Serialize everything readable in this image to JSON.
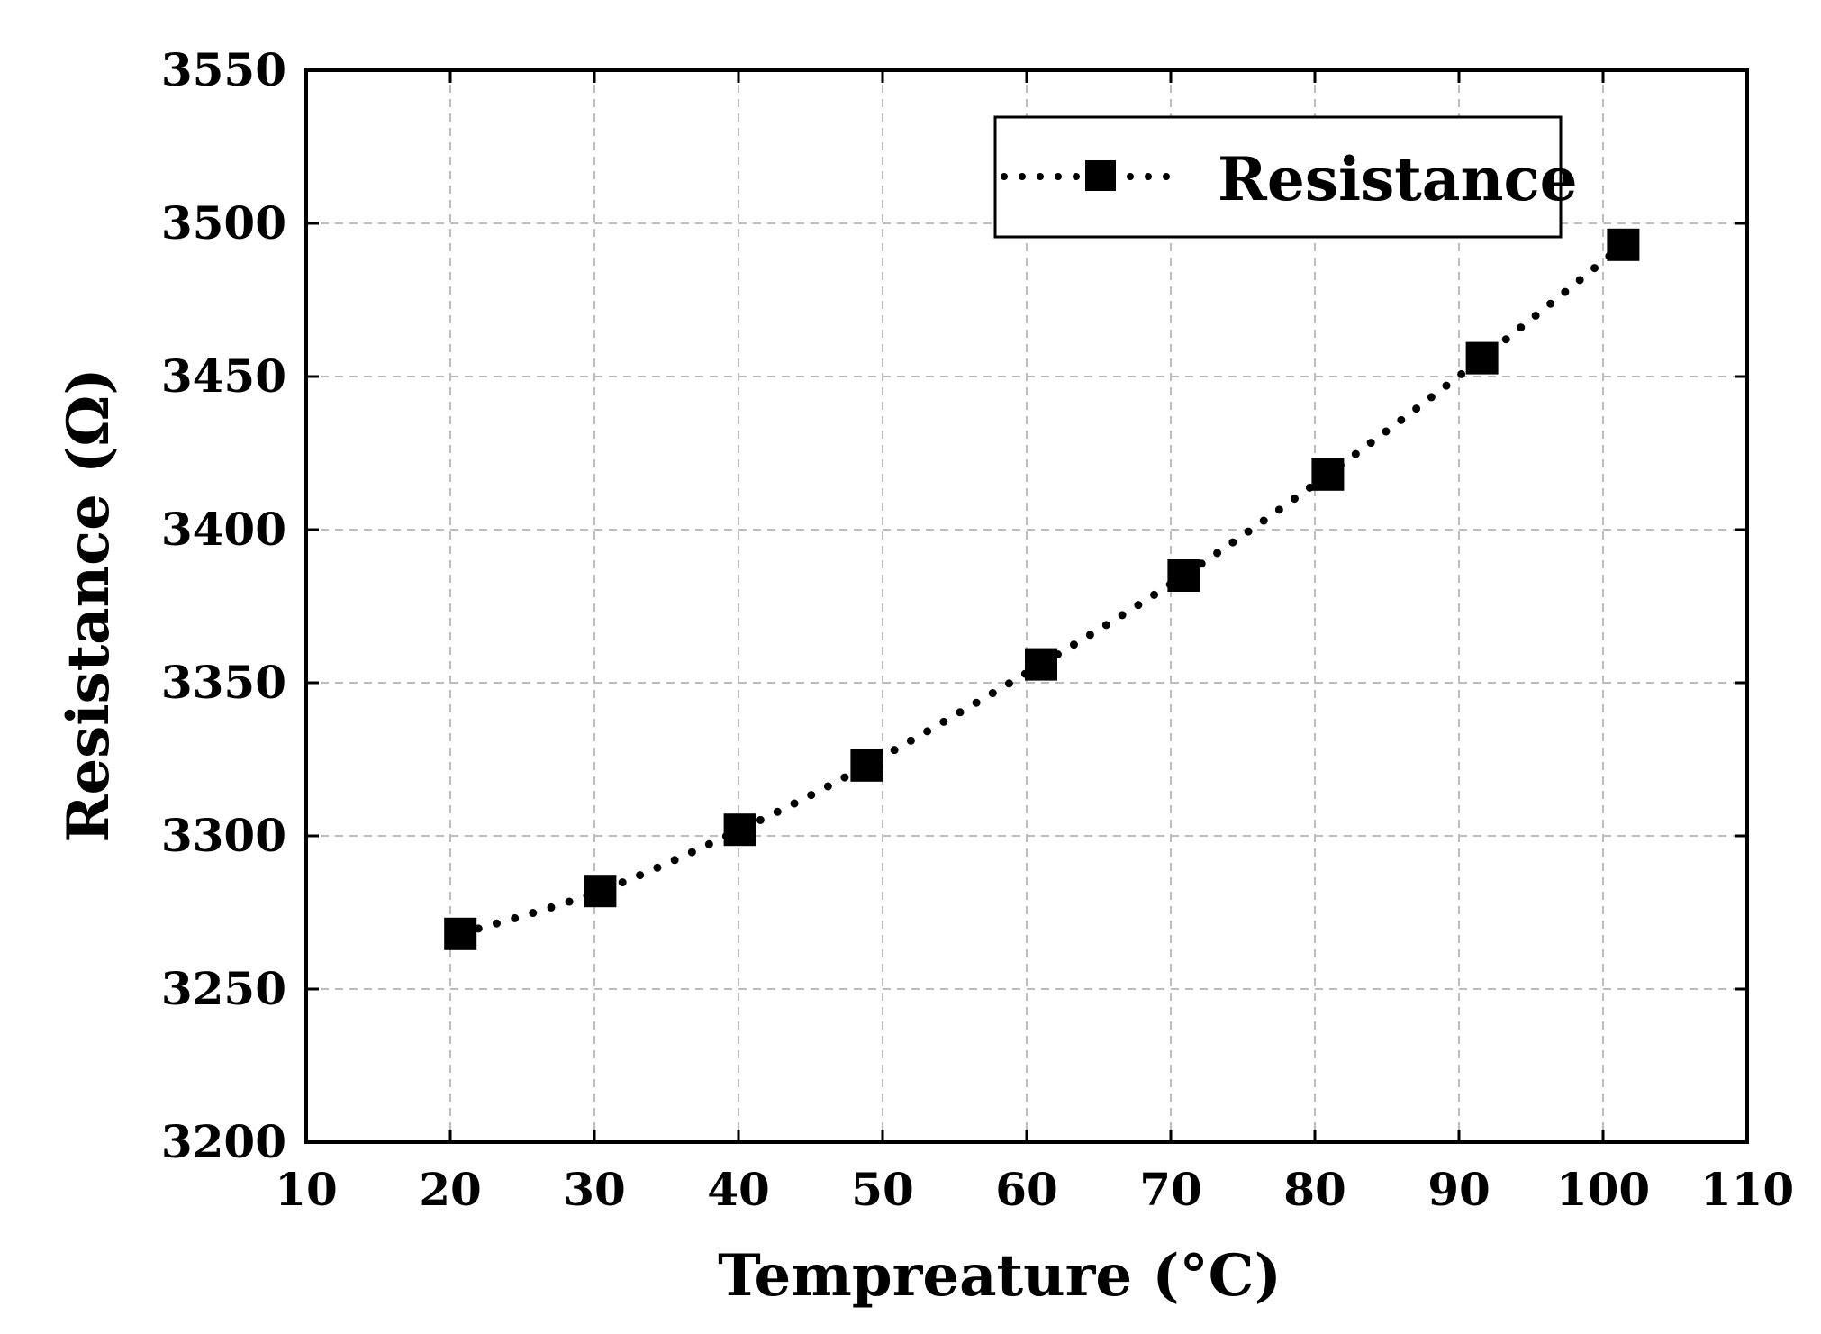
{
  "chart_data": {
    "type": "line",
    "title": "",
    "xlabel": "Tempreature (°C)",
    "ylabel": "Resistance (Ω)",
    "xlim": [
      10,
      110
    ],
    "ylim": [
      3200,
      3550
    ],
    "xticks": [
      "10",
      "20",
      "30",
      "40",
      "50",
      "60",
      "70",
      "80",
      "90",
      "100",
      "110"
    ],
    "yticks": [
      "3200",
      "3250",
      "3300",
      "3350",
      "3400",
      "3450",
      "3500",
      "3550"
    ],
    "grid": true,
    "legend_position": "top-right",
    "series": [
      {
        "name": "Resistance",
        "line_style": "dotted",
        "marker": "square",
        "color": "#000000",
        "x": [
          20.7,
          30.4,
          40.1,
          48.9,
          61.0,
          70.9,
          80.9,
          91.6,
          101.4
        ],
        "y": [
          3268,
          3282,
          3302,
          3323,
          3356,
          3385,
          3418,
          3456,
          3493
        ]
      }
    ]
  }
}
